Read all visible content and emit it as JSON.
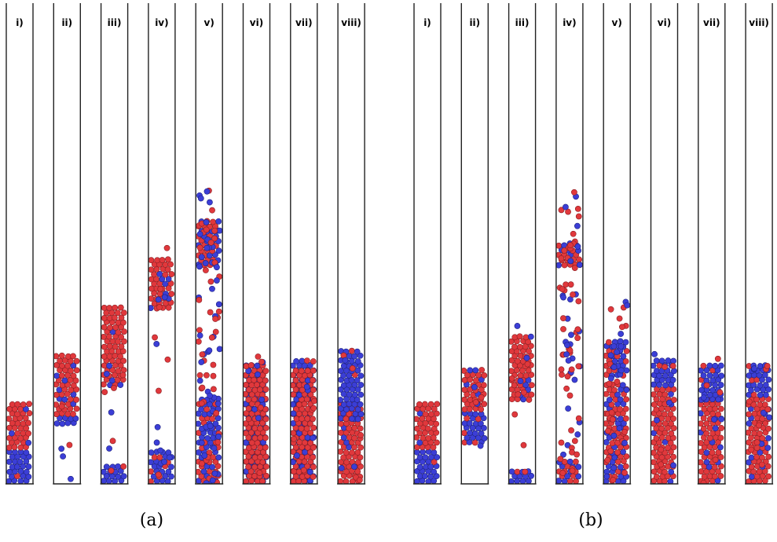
{
  "colors": {
    "red": "#e0383c",
    "blue": "#3b3ed6",
    "red_edge": "#8a1e22",
    "blue_edge": "#1e2280",
    "tube": "#222222"
  },
  "panels": [
    {
      "caption": "(a)",
      "columns": [
        {
          "label": "i)",
          "blue_fill": [
            0.0,
            0.07
          ],
          "red_fill": [
            0.07,
            0.17
          ],
          "scatter": 0
        },
        {
          "label": "ii)",
          "blue_fill": [
            0.12,
            0.14
          ],
          "red_fill": [
            0.14,
            0.27
          ],
          "scatter": 0.03
        },
        {
          "label": "iii)",
          "blue_fill": [
            0.0,
            0.04
          ],
          "red_fill": [
            0.2,
            0.37
          ],
          "scatter": 0.05
        },
        {
          "label": "iv)",
          "blue_fill": [
            0.0,
            0.07
          ],
          "red_fill": [
            0.36,
            0.47
          ],
          "scatter": 0.1
        },
        {
          "label": "v)",
          "blue_fill": [
            0.0,
            0.18
          ],
          "red_fill": [
            0.45,
            0.55
          ],
          "scatter": 0.55
        },
        {
          "label": "vi)",
          "blue_fill": [
            0.0,
            0.25
          ],
          "red_fill": [
            0.0,
            0.25
          ],
          "scatter": 0.05
        },
        {
          "label": "vii)",
          "blue_fill": [
            0.0,
            0.26
          ],
          "red_fill": [
            0.0,
            0.24
          ],
          "scatter": 0.05
        },
        {
          "label": "viii)",
          "blue_fill": [
            0.13,
            0.28
          ],
          "red_fill": [
            0.0,
            0.17
          ],
          "scatter": 0.05
        }
      ]
    },
    {
      "caption": "(b)",
      "columns": [
        {
          "label": "i)",
          "blue_fill": [
            0.0,
            0.07
          ],
          "red_fill": [
            0.07,
            0.17
          ],
          "scatter": 0
        },
        {
          "label": "ii)",
          "blue_fill": [
            0.08,
            0.15
          ],
          "red_fill": [
            0.15,
            0.24
          ],
          "scatter": 0.03
        },
        {
          "label": "iii)",
          "blue_fill": [
            0.0,
            0.03
          ],
          "red_fill": [
            0.17,
            0.31
          ],
          "scatter": 0.06
        },
        {
          "label": "iv)",
          "blue_fill": [
            0.0,
            0.05
          ],
          "red_fill": [
            0.45,
            0.5
          ],
          "scatter": 0.5
        },
        {
          "label": "v)",
          "blue_fill": [
            0.22,
            0.3
          ],
          "red_fill": [
            0.0,
            0.21
          ],
          "scatter": 0.25
        },
        {
          "label": "vi)",
          "blue_fill": [
            0.2,
            0.26
          ],
          "red_fill": [
            0.0,
            0.2
          ],
          "scatter": 0.05
        },
        {
          "label": "vii)",
          "blue_fill": [
            0.17,
            0.25
          ],
          "red_fill": [
            0.0,
            0.18
          ],
          "scatter": 0.05
        },
        {
          "label": "viii)",
          "blue_fill": [
            0.18,
            0.25
          ],
          "red_fill": [
            0.0,
            0.18
          ],
          "scatter": 0.08
        }
      ]
    }
  ]
}
